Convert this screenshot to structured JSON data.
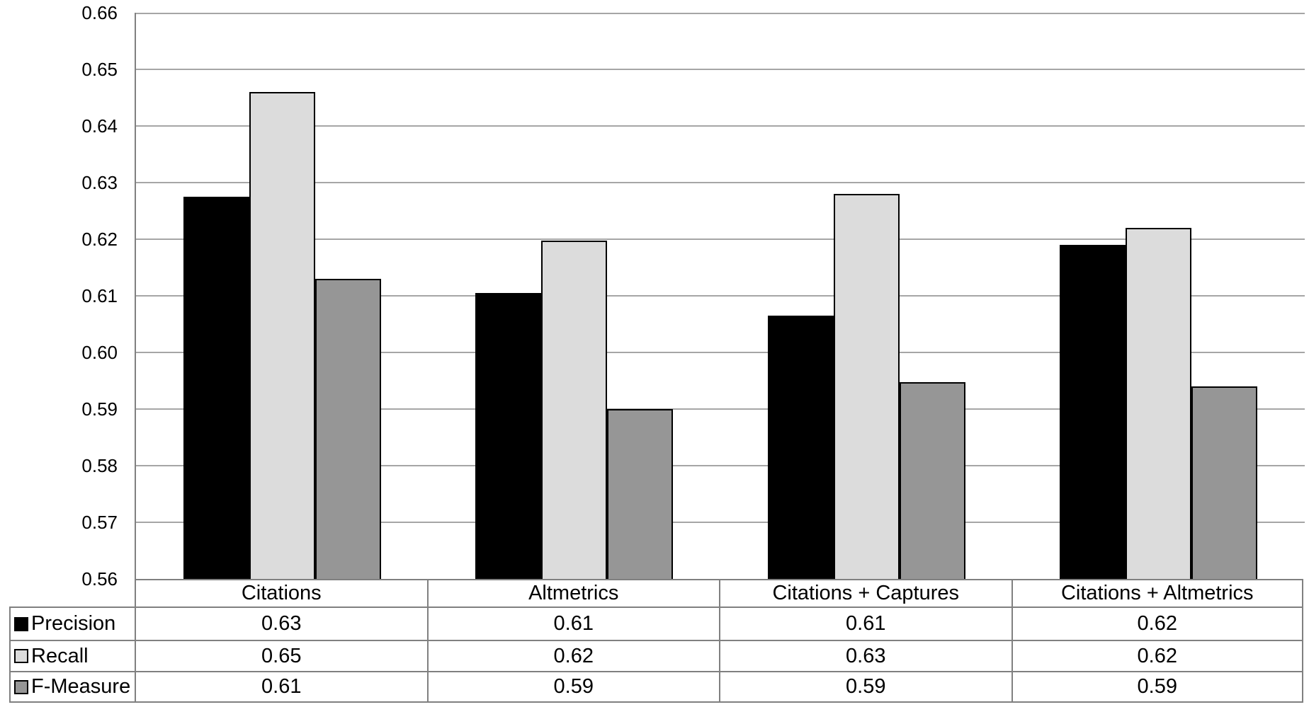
{
  "chart_data": {
    "type": "bar",
    "title": "",
    "xlabel": "",
    "ylabel": "",
    "categories": [
      "Citations",
      "Altmetrics",
      "Citations + Captures",
      "Citations + Altmetrics"
    ],
    "series": [
      {
        "name": "Precision",
        "color": "#000000",
        "values": [
          0.6275,
          0.6105,
          0.6065,
          0.619
        ],
        "table_values": [
          "0.63",
          "0.61",
          "0.61",
          "0.62"
        ]
      },
      {
        "name": "Recall",
        "color": "#DCDCDC",
        "values": [
          0.646,
          0.6198,
          0.628,
          0.622
        ],
        "table_values": [
          "0.65",
          "0.62",
          "0.63",
          "0.62"
        ]
      },
      {
        "name": "F-Measure",
        "color": "#969696",
        "values": [
          0.613,
          0.59,
          0.5948,
          0.594
        ],
        "table_values": [
          "0.61",
          "0.59",
          "0.59",
          "0.59"
        ]
      }
    ],
    "ylim": [
      0.56,
      0.66
    ],
    "ytick_step": 0.01,
    "ytick_labels": [
      "0.66",
      "0.65",
      "0.64",
      "0.63",
      "0.62",
      "0.61",
      "0.60",
      "0.59",
      "0.58",
      "0.57",
      "0.56"
    ],
    "grid": true,
    "legend_position": "table-left",
    "data_table_shown": true
  },
  "colors": {
    "background": "#FFFFFF",
    "text": "#000000",
    "gridline": "#A6A6A6",
    "axis_line": "#808080",
    "table_border": "#808080",
    "bar_outline": "#000000"
  }
}
